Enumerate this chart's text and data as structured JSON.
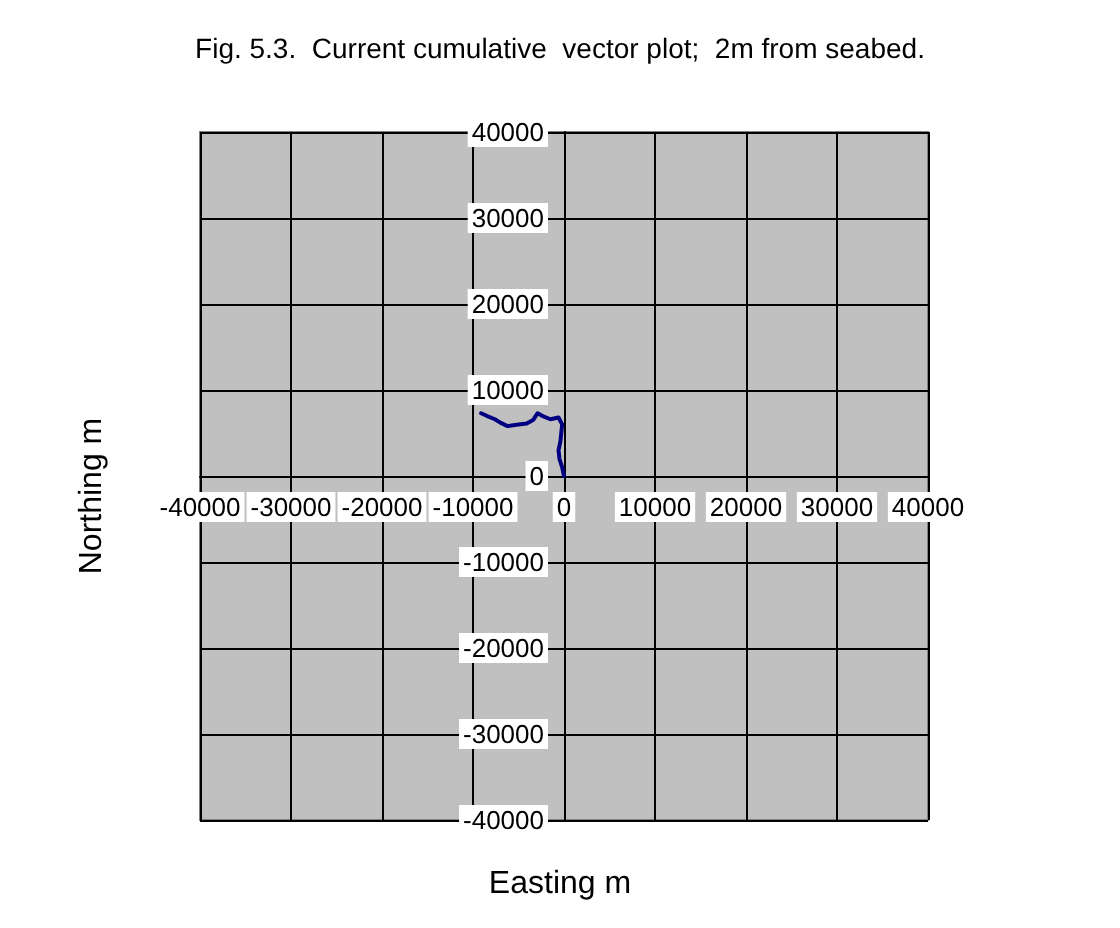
{
  "chart_data": {
    "type": "line",
    "title": "Fig. 5.3.  Current cumulative  vector plot;  2m from seabed.",
    "xlabel": "Easting m",
    "ylabel": "Northing m",
    "series": [
      {
        "color": "#000080",
        "x": [
          0,
          -200,
          -500,
          -600,
          -400,
          -300,
          -200,
          -600,
          -1500,
          -2400,
          -2900,
          -3400,
          -4100,
          -5000,
          -6200,
          -7000,
          -7600,
          -8500,
          -9100
        ],
        "values": [
          0,
          1000,
          2000,
          3000,
          4000,
          5000,
          6000,
          6800,
          6600,
          7000,
          7300,
          6500,
          6100,
          6000,
          5800,
          6200,
          6600,
          7000,
          7300
        ]
      }
    ],
    "xlim": [
      -40000,
      40000
    ],
    "xticks": [
      -40000,
      -30000,
      -20000,
      -10000,
      0,
      10000,
      20000,
      30000,
      40000
    ],
    "ylim": [
      -40000,
      40000
    ],
    "yticks": [
      -40000,
      -30000,
      -20000,
      -10000,
      0,
      10000,
      20000,
      30000,
      40000
    ],
    "grid": true,
    "line_style": "solid"
  }
}
